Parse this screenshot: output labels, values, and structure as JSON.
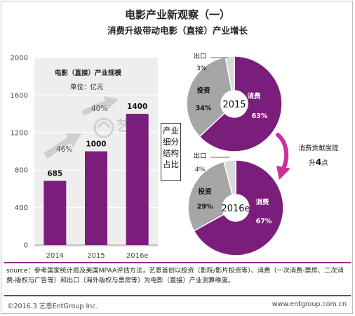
{
  "header": {
    "title": "电影产业新观察（一）",
    "subtitle": "消费升级带动电影（直接）产业增长"
  },
  "bar_panel": {
    "title": "电影（直接）产业规模",
    "unit": "单位：亿元",
    "growth_labels": [
      "46%",
      "40%"
    ]
  },
  "side_label": [
    "产业",
    "细分",
    "结构",
    "占比"
  ],
  "note": {
    "line1": "消费贡献度提",
    "line2_prefix": "升",
    "line2_value": "4",
    "line2_suffix": "点"
  },
  "colors": {
    "accent": "#7b1e7b",
    "gray": "#a6a6a6",
    "light": "#d9d9d9",
    "chart_bg": "#eeeeee"
  },
  "chart_data": [
    {
      "type": "bar",
      "title": "电影（直接）产业规模",
      "ylabel": "单位：亿元",
      "categories": [
        "2014",
        "2015",
        "2016e"
      ],
      "values": [
        685,
        1000,
        1400
      ],
      "value_labels": [
        "685",
        "1000",
        "1400"
      ],
      "yticks": [
        "0",
        "400",
        "800",
        "1200",
        "1600",
        "2000"
      ],
      "ylim": [
        0,
        2000
      ],
      "grid": true
    },
    {
      "type": "pie",
      "center_label": "2015",
      "slices": [
        {
          "label": "消费",
          "value": 63,
          "display": "63%",
          "color": "#7b1e7b"
        },
        {
          "label": "投资",
          "value": 34,
          "display": "34%",
          "color": "#a6a6a6"
        },
        {
          "label": "出口",
          "value": 3,
          "display": "3%",
          "color": "#d9d9d9"
        }
      ]
    },
    {
      "type": "pie",
      "center_label": "2016e",
      "slices": [
        {
          "label": "消费",
          "value": 67,
          "display": "67%",
          "color": "#7b1e7b"
        },
        {
          "label": "投资",
          "value": 29,
          "display": "29%",
          "color": "#a6a6a6"
        },
        {
          "label": "出口",
          "value": 4,
          "display": "4%",
          "color": "#d9d9d9"
        }
      ]
    }
  ],
  "source": "source：参考国家统计局及美国MPAA评估方法，艺恩首创以投资（影院/影片投资等）、消费（一次消费-票房、二次消费-版权与广告等）和出口（海外版权与票房等）为电影（直接）产业测算维度。",
  "footer": {
    "left": "©2016.3  艺恩EntGroup Inc.",
    "right": "www.entgroup.com.cn"
  }
}
